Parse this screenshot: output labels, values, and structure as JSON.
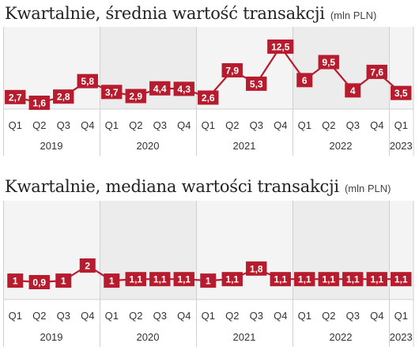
{
  "colors": {
    "line": "#b71c2e",
    "label_bg": "#b71c2e",
    "label_text": "#ffffff",
    "band_a": "#f4f4f4",
    "band_b": "#ececec",
    "grid": "#d0d0d0",
    "axis_text": "#333333"
  },
  "chart_data": [
    {
      "type": "line",
      "title": "Kwartalnie, średnia wartość transakcji",
      "unit": "(mln PLN)",
      "categories": [
        "Q1",
        "Q2",
        "Q3",
        "Q4",
        "Q1",
        "Q2",
        "Q3",
        "Q4",
        "Q1",
        "Q2",
        "Q3",
        "Q4",
        "Q1",
        "Q2",
        "Q3",
        "Q4",
        "Q1"
      ],
      "years": [
        "2019",
        "2020",
        "2021",
        "2022",
        "2023"
      ],
      "values": [
        2.7,
        1.6,
        2.8,
        5.8,
        3.7,
        2.9,
        4.4,
        4.3,
        2.6,
        7.9,
        5.3,
        12.5,
        6,
        9.5,
        4,
        7.6,
        3.5
      ],
      "value_labels": [
        "2,7",
        "1,6",
        "2,8",
        "5,8",
        "3,7",
        "2,9",
        "4,4",
        "4,3",
        "2,6",
        "7,9",
        "5,3",
        "12,5",
        "6",
        "9,5",
        "4",
        "7,6",
        "3,5"
      ],
      "ylim": [
        1.6,
        12.5
      ],
      "grid": false
    },
    {
      "type": "line",
      "title": "Kwartalnie, mediana wartości transakcji",
      "unit": "(mln PLN)",
      "categories": [
        "Q1",
        "Q2",
        "Q3",
        "Q4",
        "Q1",
        "Q2",
        "Q3",
        "Q4",
        "Q1",
        "Q2",
        "Q3",
        "Q4",
        "Q1",
        "Q2",
        "Q3",
        "Q4",
        "Q1"
      ],
      "years": [
        "2019",
        "2020",
        "2021",
        "2022",
        "2023"
      ],
      "values": [
        1,
        0.9,
        1,
        2,
        1,
        1.1,
        1.1,
        1.1,
        1,
        1.1,
        1.8,
        1.1,
        1.1,
        1.1,
        1.1,
        1.1,
        1.1
      ],
      "value_labels": [
        "1",
        "0,9",
        "1",
        "2",
        "1",
        "1,1",
        "1,1",
        "1,1",
        "1",
        "1,1",
        "1,8",
        "1,1",
        "1,1",
        "1,1",
        "1,1",
        "1,1",
        "1,1"
      ],
      "ylim": [
        0.9,
        2
      ],
      "grid": false
    }
  ]
}
